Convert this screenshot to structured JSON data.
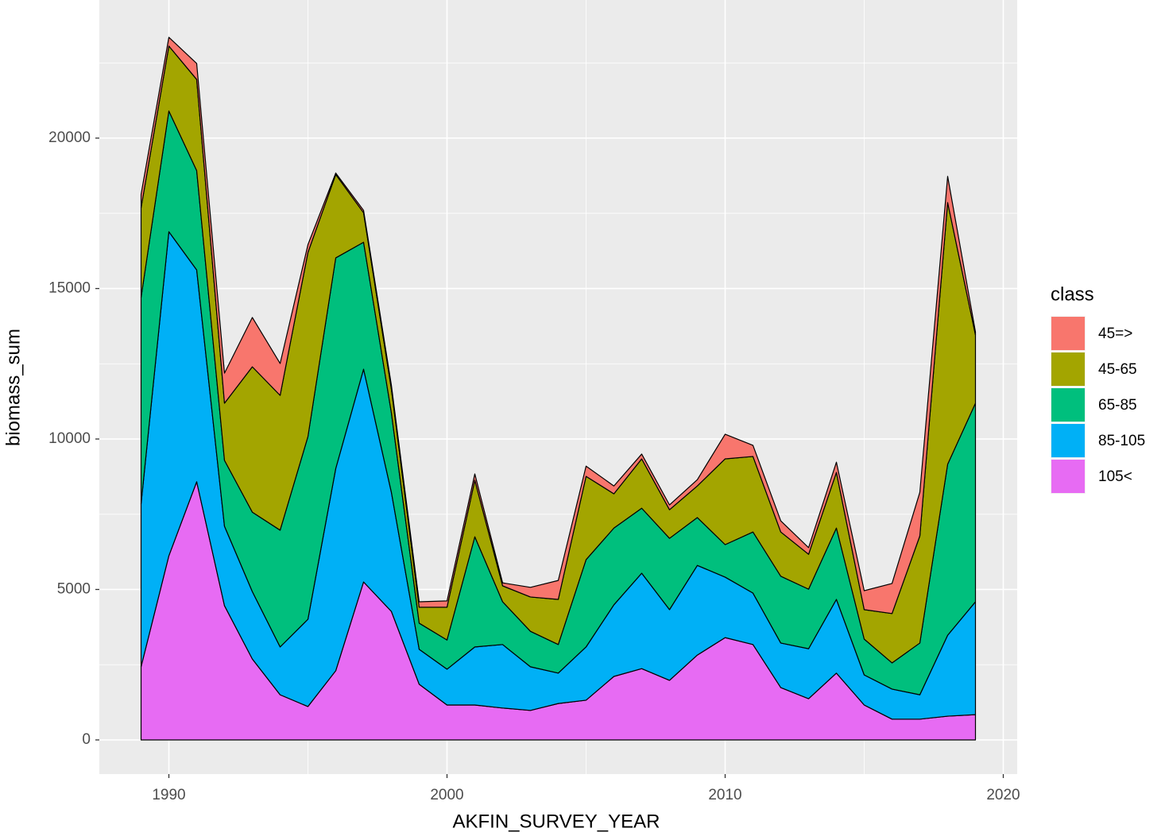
{
  "chart_data": {
    "type": "stacked_area",
    "x_label": "AKFIN_SURVEY_YEAR",
    "y_label": "biomass_sum",
    "legend_title": "class",
    "legend_position": "right",
    "grid": true,
    "xlim": [
      1987.5,
      2020.5
    ],
    "ylim": [
      -1135,
      24590
    ],
    "xticks": [
      1990,
      2000,
      2010,
      2020
    ],
    "yticks": [
      0,
      5000,
      10000,
      15000,
      20000
    ],
    "x": [
      1989,
      1990,
      1991,
      1992,
      1993,
      1994,
      1995,
      1996,
      1997,
      1998,
      1999,
      2000,
      2001,
      2002,
      2003,
      2004,
      2005,
      2006,
      2007,
      2008,
      2009,
      2010,
      2011,
      2012,
      2013,
      2014,
      2015,
      2016,
      2017,
      2018,
      2019
    ],
    "series": [
      {
        "name": "45=>",
        "color": "#F8766D",
        "values": [
          450,
          290,
          530,
          1000,
          1640,
          1060,
          260,
          50,
          80,
          130,
          180,
          210,
          210,
          100,
          320,
          630,
          340,
          260,
          160,
          160,
          210,
          820,
          370,
          370,
          220,
          340,
          630,
          1000,
          1450,
          870,
          100
        ]
      },
      {
        "name": "45-65",
        "color": "#A3A500",
        "values": [
          2980,
          2160,
          3030,
          1900,
          4830,
          4480,
          6120,
          2770,
          980,
          790,
          530,
          1090,
          1880,
          530,
          1140,
          1500,
          2770,
          1140,
          1640,
          950,
          1050,
          2850,
          2510,
          1470,
          1160,
          1850,
          980,
          1640,
          3560,
          8700,
          2270
        ]
      },
      {
        "name": "65-85",
        "color": "#00BF7D",
        "values": [
          6860,
          4010,
          3300,
          2190,
          2640,
          3880,
          6070,
          7000,
          4220,
          2640,
          870,
          970,
          3660,
          1420,
          1180,
          950,
          2900,
          2550,
          2160,
          2370,
          1590,
          1080,
          2030,
          2220,
          1980,
          2370,
          1190,
          870,
          1720,
          5680,
          6600
        ]
      },
      {
        "name": "85-105",
        "color": "#00B0F6",
        "values": [
          5410,
          10770,
          7040,
          2640,
          2240,
          1590,
          2900,
          6720,
          7070,
          3960,
          1160,
          1190,
          1930,
          2110,
          1450,
          1010,
          1770,
          2380,
          3170,
          2350,
          2980,
          2010,
          1710,
          1480,
          1660,
          2450,
          1000,
          1000,
          810,
          2690,
          3750
        ]
      },
      {
        "name": "105<",
        "color": "#E76BF3",
        "values": [
          2430,
          6120,
          8580,
          4460,
          2690,
          1500,
          1110,
          2300,
          5250,
          4270,
          1850,
          1160,
          1160,
          1060,
          980,
          1210,
          1320,
          2110,
          2370,
          1980,
          2820,
          3400,
          3170,
          1740,
          1370,
          2220,
          1160,
          690,
          690,
          790,
          840
        ]
      }
    ]
  }
}
